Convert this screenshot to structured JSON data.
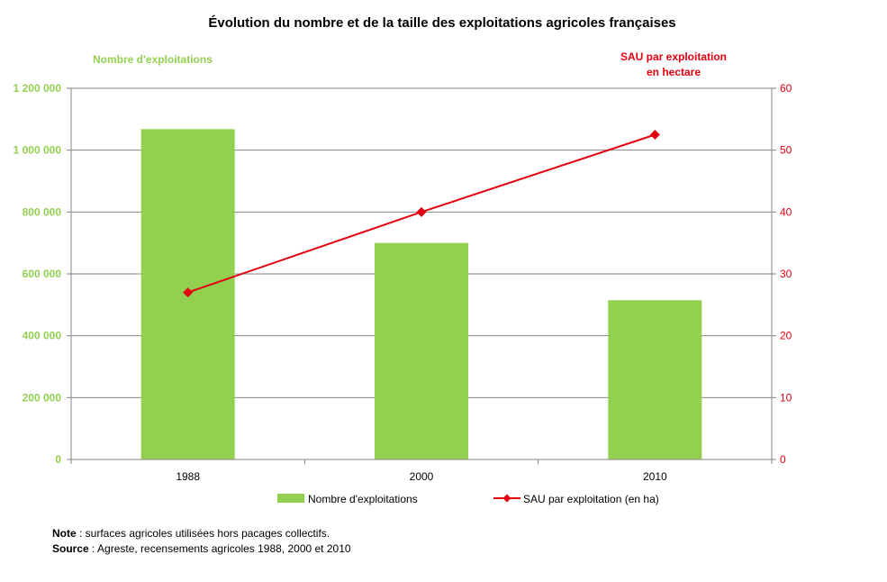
{
  "chart_data": {
    "type": "bar+line",
    "title": "Évolution du nombre et de la taille des exploitations agricoles françaises",
    "categories": [
      "1988",
      "2000",
      "2010"
    ],
    "left_axis": {
      "title": "Nombre d'exploitations",
      "range": [
        0,
        1200000
      ],
      "ticks": [
        "0",
        "200 000",
        "400 000",
        "600 000",
        "800 000",
        "1 000 000",
        "1 200 000"
      ],
      "color": "#92d050"
    },
    "right_axis": {
      "title_line1": "SAU par exploitation",
      "title_line2": "en hectare",
      "range": [
        0,
        60
      ],
      "ticks": [
        "0",
        "10",
        "20",
        "30",
        "40",
        "50",
        "60"
      ],
      "color": "#e3000f"
    },
    "series": [
      {
        "name": "Nombre d'exploitations",
        "kind": "bar",
        "axis": "left",
        "color": "#92d050",
        "values": [
          1068000,
          700000,
          515000
        ]
      },
      {
        "name": "SAU par exploitation (en ha)",
        "kind": "line",
        "axis": "right",
        "color": "#e3000f",
        "values": [
          27,
          40,
          52.5
        ]
      }
    ],
    "grid": true,
    "legend_position": "bottom"
  },
  "notes": {
    "note_label": "Note",
    "note_text": " : surfaces agricoles utilisées hors pacages collectifs.",
    "source_label": "Source",
    "source_text": " : Agreste, recensements agricoles 1988, 2000 et 2010"
  }
}
